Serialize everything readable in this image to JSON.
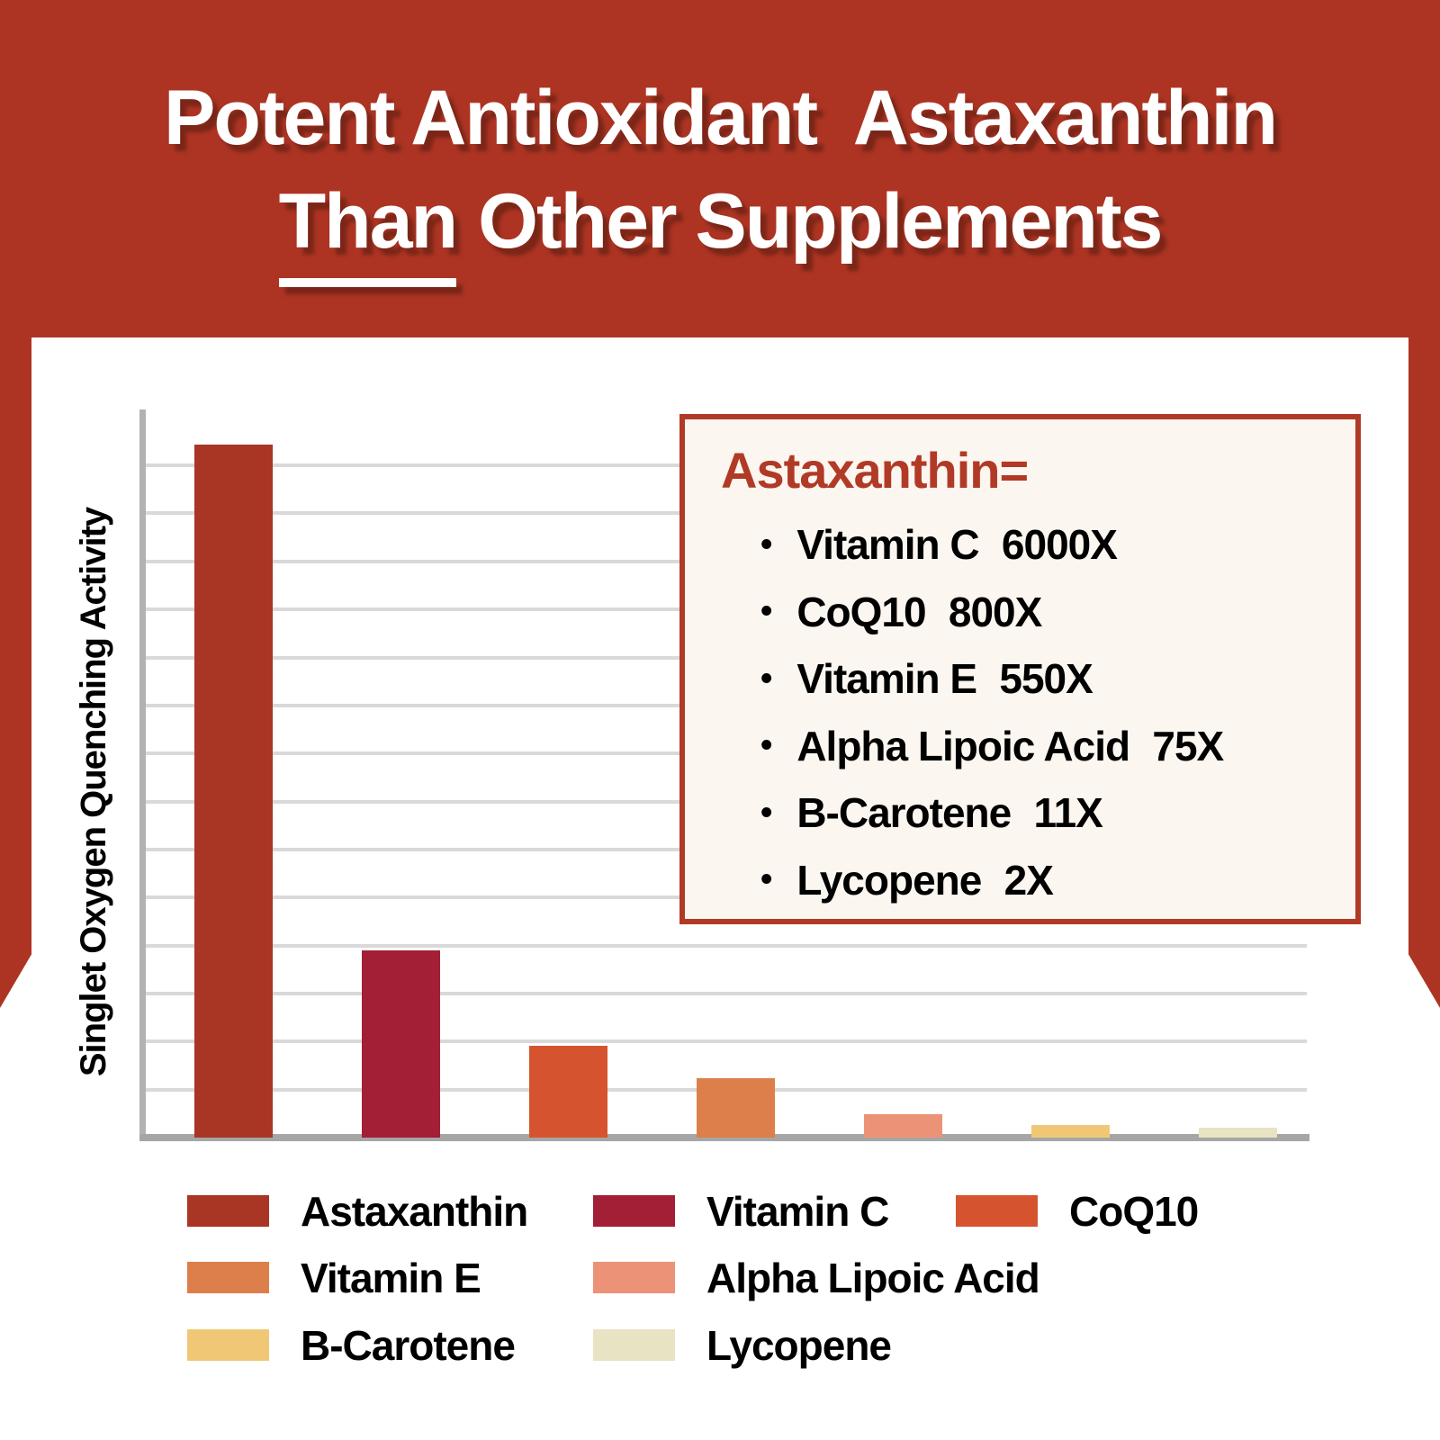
{
  "header": {
    "title_line1": "Potent Antioxidant  Astaxanthin",
    "title_line2_underlined": "Than",
    "title_line2_rest": "Other Supplements",
    "background_color": "#ad3423",
    "text_color": "#ffffff"
  },
  "callout": {
    "title": "Astaxanthin=",
    "title_color": "#b13a27",
    "border_color": "#b13a27",
    "background_color": "#fbf6ef",
    "bullet_char": "•",
    "items": [
      {
        "label": "Vitamin C",
        "multiplier": "6000X"
      },
      {
        "label": "CoQ10",
        "multiplier": "800X"
      },
      {
        "label": "Vitamin E",
        "multiplier": "550X"
      },
      {
        "label": "Alpha Lipoic Acid",
        "multiplier": "75X"
      },
      {
        "label": "B-Carotene",
        "multiplier": "11X"
      },
      {
        "label": "Lycopene",
        "multiplier": "2X"
      }
    ]
  },
  "chart_data": {
    "type": "bar",
    "title": "",
    "xlabel": "",
    "ylabel": "Singlet Oxygen Quenching Activity",
    "categories": [
      "Astaxanthin",
      "Vitamin C",
      "CoQ10",
      "Vitamin E",
      "Alpha Lipoic Acid",
      "B-Carotene",
      "Lycopene"
    ],
    "values": [
      100,
      27,
      13.2,
      8.6,
      3.4,
      1.8,
      1.4
    ],
    "y_units": "relative height, % of Astaxanthin bar",
    "ylim": [
      0,
      105
    ],
    "x_tick_labels_shown": false,
    "y_tick_labels_shown": false,
    "grid": true,
    "gridline_count": 14,
    "grid_color": "#d9d9d9",
    "axis_color": "#b3b2b2",
    "baseline_color": "#a6a6a6",
    "bar_colors": [
      "#a93524",
      "#a21f35",
      "#d5542f",
      "#dd7f4b",
      "#ec9377",
      "#f0c875",
      "#e7e3c3"
    ],
    "legend_position": "bottom"
  },
  "legend": {
    "items": [
      {
        "label": "Astaxanthin",
        "color": "#a93524"
      },
      {
        "label": "Vitamin C",
        "color": "#a21f35"
      },
      {
        "label": "CoQ10",
        "color": "#d5542f"
      },
      {
        "label": "Vitamin E",
        "color": "#dd7f4b"
      },
      {
        "label": "Alpha Lipoic Acid",
        "color": "#ec9377"
      },
      {
        "label": "B-Carotene",
        "color": "#f0c875"
      },
      {
        "label": "Lycopene",
        "color": "#e7e3c3"
      }
    ]
  }
}
